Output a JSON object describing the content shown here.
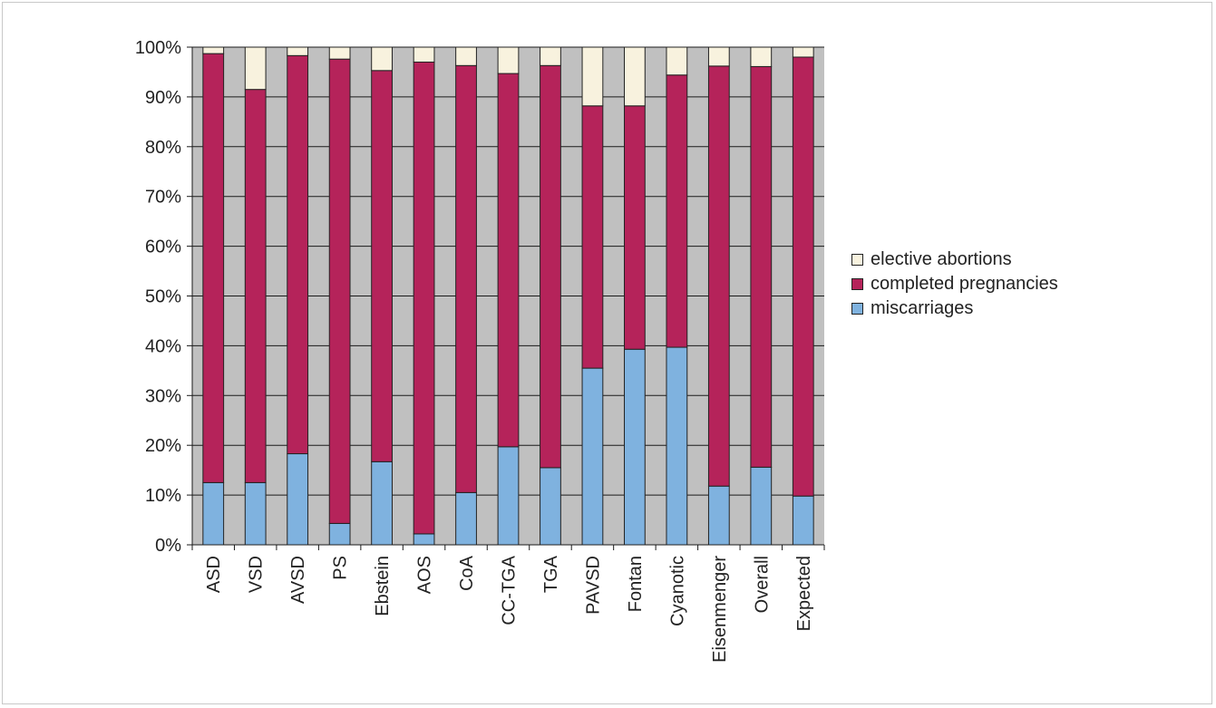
{
  "chart_data": {
    "type": "bar",
    "stacked": true,
    "orientation": "vertical",
    "categories": [
      "ASD",
      "VSD",
      "AVSD",
      "PS",
      "Ebstein",
      "AOS",
      "CoA",
      "CC-TGA",
      "TGA",
      "PAVSD",
      "Fontan",
      "Cyanotic",
      "Eisenmenger",
      "Overall",
      "Expected"
    ],
    "series": [
      {
        "name": "miscarriages",
        "color": "#7fb2df",
        "values": [
          12.5,
          12.5,
          18.3,
          4.3,
          16.7,
          2.2,
          10.5,
          19.7,
          15.5,
          35.5,
          39.3,
          39.7,
          11.8,
          15.6,
          9.8
        ]
      },
      {
        "name": "completed pregnancies",
        "color": "#b5235a",
        "values": [
          86.2,
          79.0,
          80.0,
          93.3,
          78.6,
          94.8,
          85.8,
          75.0,
          80.8,
          52.7,
          48.9,
          54.7,
          84.4,
          80.5,
          88.2
        ]
      },
      {
        "name": "elective abortions",
        "color": "#f8f2de",
        "values": [
          1.3,
          8.5,
          1.7,
          2.4,
          4.7,
          3.0,
          3.7,
          5.3,
          3.7,
          11.8,
          11.8,
          5.6,
          3.8,
          3.9,
          2.0
        ]
      }
    ],
    "legend_order": [
      "elective abortions",
      "completed pregnancies",
      "miscarriages"
    ],
    "y_ticks": [
      "0%",
      "10%",
      "20%",
      "30%",
      "40%",
      "50%",
      "60%",
      "70%",
      "80%",
      "90%",
      "100%"
    ],
    "ylim": [
      0,
      100
    ],
    "grid": true,
    "plot_background": "#c0c0c0",
    "legend_position": "right"
  }
}
